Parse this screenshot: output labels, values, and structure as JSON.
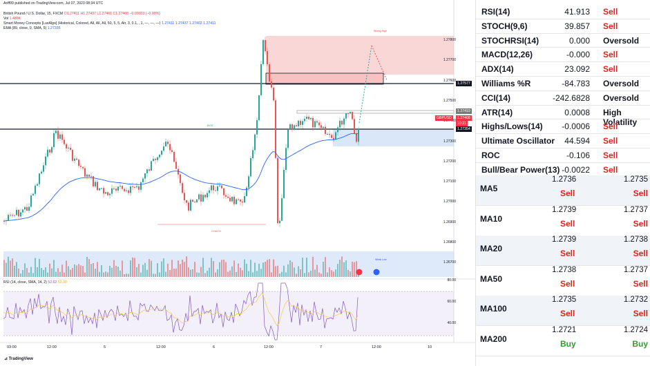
{
  "chart": {
    "published_line": "Ariff99 published on TradingView.com, Jul 07, 2023 08:34 UTC",
    "symbol_line": "British Pound / U.S. Dollar, 15, FXCM",
    "ohlc": "O1.27411 H1.27437 L1.27401 C1.27408 −0.00003 (−0.00%)",
    "vol_label": "Vol",
    "vol_value": "1.489K",
    "smc_line": "Smart Money Concepts [LuxAlgo] (Historical, Colored, All, All, All, 50, 5, 5, Atr, 3, 0.1, , 1, —, —, —)",
    "smc_values": "1.27411  1.27437  1.27402  1.27411",
    "ema_line": "EMA (89, close, 0, SMA, 5)",
    "ema_value": "1.27335",
    "rsi_line": "RSI (14, close, SMA, 14, 2)",
    "rsi_v1": "52.62",
    "rsi_v2": "52.30",
    "price_ticks": [
      "1.27800",
      "1.27700",
      "1.27600",
      "1.27500",
      "1.27400",
      "1.27300",
      "1.27200",
      "1.27100",
      "1.27000",
      "1.26900",
      "1.26800",
      "1.26700"
    ],
    "rsi_ticks": [
      "80.00",
      "60.00",
      "40.00"
    ],
    "x_ticks": [
      "03:00",
      "12:00",
      "5",
      "12:00",
      "6",
      "12:00",
      "7",
      "12:00",
      "10"
    ],
    "tag_upper": "1.27577",
    "tag_mid": "1.27419",
    "tag_symbol": "GBPUSD",
    "tag_last": "1.27408",
    "tag_timer": "10:21",
    "tag_lower": "1.27354",
    "ann_strong_high": "Strong High",
    "ann_bos": "BOS",
    "ann_choch": "CHoCH",
    "ann_weak_low": "Weak Low",
    "logo_text": "TradingView",
    "colors": {
      "up": "#26a69a",
      "down": "#ef5350",
      "ema": "#2962ff",
      "rsi": "#7e57c2",
      "rsi_ma": "#f7c948"
    }
  },
  "indicators": [
    {
      "name": "RSI(14)",
      "value": "41.913",
      "action": "Sell",
      "kind": "sell"
    },
    {
      "name": "STOCH(9,6)",
      "value": "39.857",
      "action": "Sell",
      "kind": "sell"
    },
    {
      "name": "STOCHRSI(14)",
      "value": "0.000",
      "action": "Oversold",
      "kind": "neu"
    },
    {
      "name": "MACD(12,26)",
      "value": "-0.000",
      "action": "Sell",
      "kind": "sell"
    },
    {
      "name": "ADX(14)",
      "value": "23.092",
      "action": "Sell",
      "kind": "sell"
    },
    {
      "name": "Williams %R",
      "value": "-84.783",
      "action": "Oversold",
      "kind": "neu"
    },
    {
      "name": "CCI(14)",
      "value": "-242.6828",
      "action": "Oversold",
      "kind": "neu"
    },
    {
      "name": "ATR(14)",
      "value": "0.0008",
      "action": "High Volatility",
      "kind": "neu"
    },
    {
      "name": "Highs/Lows(14)",
      "value": "-0.0006",
      "action": "Sell",
      "kind": "sell"
    },
    {
      "name": "Ultimate Oscillator",
      "value": "44.594",
      "action": "Sell",
      "kind": "sell"
    },
    {
      "name": "ROC",
      "value": "-0.106",
      "action": "Sell",
      "kind": "sell"
    },
    {
      "name": "Bull/Bear Power(13)",
      "value": "-0.0022",
      "action": "Sell",
      "kind": "sell"
    }
  ],
  "moving_averages": [
    {
      "name": "MA5",
      "simple": "1.2736",
      "simple_action": "Sell",
      "exp": "1.2735",
      "exp_action": "Sell",
      "kind": "sell"
    },
    {
      "name": "MA10",
      "simple": "1.2739",
      "simple_action": "Sell",
      "exp": "1.2737",
      "exp_action": "Sell",
      "kind": "sell"
    },
    {
      "name": "MA20",
      "simple": "1.2739",
      "simple_action": "Sell",
      "exp": "1.2738",
      "exp_action": "Sell",
      "kind": "sell"
    },
    {
      "name": "MA50",
      "simple": "1.2738",
      "simple_action": "Sell",
      "exp": "1.2737",
      "exp_action": "Sell",
      "kind": "sell"
    },
    {
      "name": "MA100",
      "simple": "1.2735",
      "simple_action": "Sell",
      "exp": "1.2732",
      "exp_action": "Sell",
      "kind": "sell"
    },
    {
      "name": "MA200",
      "simple": "1.2721",
      "simple_action": "Buy",
      "exp": "1.2724",
      "exp_action": "Buy",
      "kind": "buy"
    }
  ]
}
